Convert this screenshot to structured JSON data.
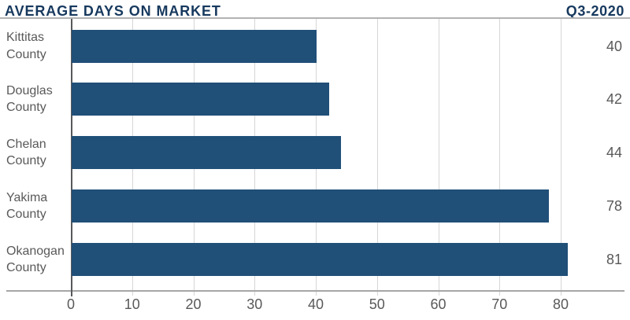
{
  "header": {
    "title": "AVERAGE DAYS ON MARKET",
    "period": "Q3-2020"
  },
  "chart_data": {
    "type": "bar",
    "orientation": "horizontal",
    "title": "AVERAGE DAYS ON MARKET",
    "subtitle": "Q3-2020",
    "categories": [
      "Kittitas County",
      "Douglas County",
      "Chelan County",
      "Yakima County",
      "Okanogan County"
    ],
    "values": [
      40,
      42,
      44,
      78,
      81
    ],
    "value_labels": [
      "40",
      "42",
      "44",
      "78",
      "81"
    ],
    "xlabel": "",
    "ylabel": "",
    "xlim": [
      0,
      80
    ],
    "x_ticks": [
      0,
      10,
      20,
      30,
      40,
      50,
      60,
      70,
      80
    ],
    "grid": true,
    "legend": false
  },
  "colors": {
    "bar": "#204f78",
    "title_text": "#17395e",
    "label_text": "#595959",
    "gridline": "#d6d6d6",
    "zero_line": "#58595b",
    "axis_line": "#a6a6a6",
    "header_rule": "#b3b3b3",
    "background": "#ffffff"
  }
}
